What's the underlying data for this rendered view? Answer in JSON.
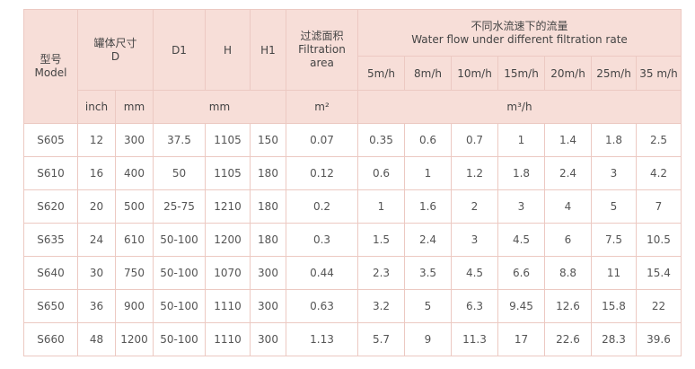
{
  "table": {
    "header": {
      "model": [
        "型号",
        "Model"
      ],
      "tank_size": [
        "罐体尺寸",
        "D"
      ],
      "d1": "D1",
      "h": "H",
      "h1": "H1",
      "filtration_area": [
        "过滤面积",
        "Filtration",
        "area"
      ],
      "flow": [
        "不同水流速下的流量",
        "Water flow under different filtration rate"
      ],
      "rates": [
        "5m/h",
        "8m/h",
        "10m/h",
        "15m/h",
        "20m/h",
        "25m/h",
        "35 m/h"
      ]
    },
    "units": {
      "tank_inch": "inch",
      "tank_mm": "mm",
      "dims": "mm",
      "area": "m²",
      "flow": "m³/h"
    },
    "rows": [
      [
        "S605",
        "12",
        "300",
        "37.5",
        "1105",
        "150",
        "0.07",
        "0.35",
        "0.6",
        "0.7",
        "1",
        "1.4",
        "1.8",
        "2.5"
      ],
      [
        "S610",
        "16",
        "400",
        "50",
        "1105",
        "180",
        "0.12",
        "0.6",
        "1",
        "1.2",
        "1.8",
        "2.4",
        "3",
        "4.2"
      ],
      [
        "S620",
        "20",
        "500",
        "25-75",
        "1210",
        "180",
        "0.2",
        "1",
        "1.6",
        "2",
        "3",
        "4",
        "5",
        "7"
      ],
      [
        "S635",
        "24",
        "610",
        "50-100",
        "1200",
        "180",
        "0.3",
        "1.5",
        "2.4",
        "3",
        "4.5",
        "6",
        "7.5",
        "10.5"
      ],
      [
        "S640",
        "30",
        "750",
        "50-100",
        "1070",
        "300",
        "0.44",
        "2.3",
        "3.5",
        "4.5",
        "6.6",
        "8.8",
        "11",
        "15.4"
      ],
      [
        "S650",
        "36",
        "900",
        "50-100",
        "1110",
        "300",
        "0.63",
        "3.2",
        "5",
        "6.3",
        "9.45",
        "12.6",
        "15.8",
        "22"
      ],
      [
        "S660",
        "48",
        "1200",
        "50-100",
        "1110",
        "300",
        "1.13",
        "5.7",
        "9",
        "11.3",
        "17",
        "22.6",
        "28.3",
        "39.6"
      ]
    ]
  }
}
